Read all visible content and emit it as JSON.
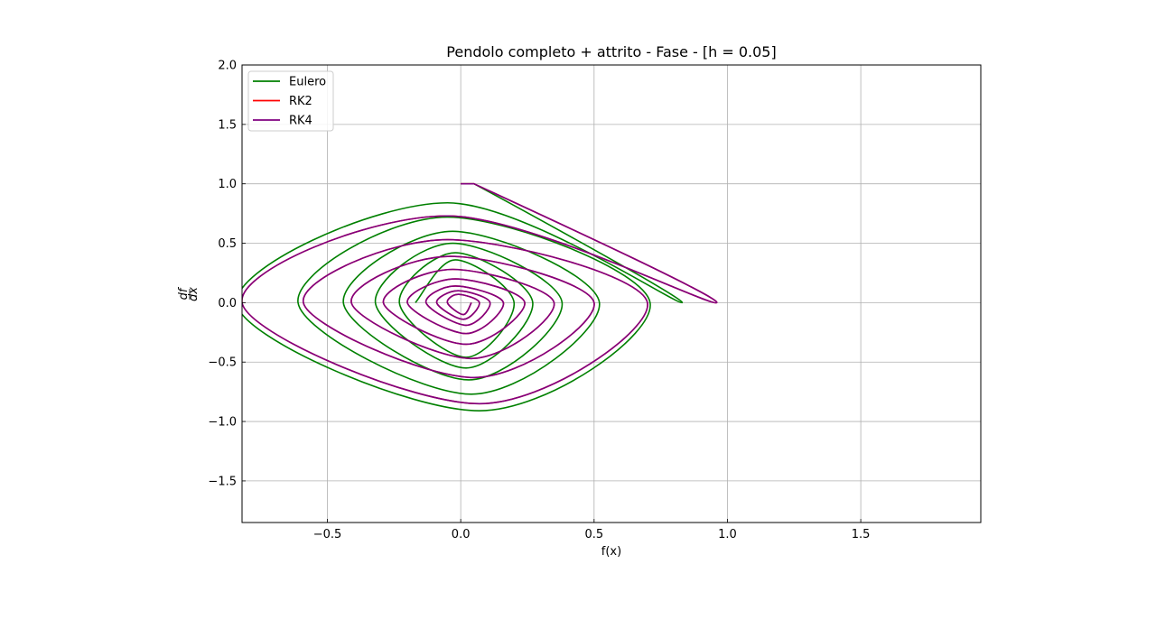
{
  "chart_data": {
    "type": "line",
    "title": "Pendolo completo + attrito - Fase - [h = 0.05]",
    "xlabel": "f(x)",
    "ylabel_num": "df",
    "ylabel_den": "dx",
    "xlim": [
      -0.82,
      1.95
    ],
    "ylim": [
      -1.85,
      2.0
    ],
    "x_ticks": [
      -0.5,
      0.0,
      0.5,
      1.0,
      1.5
    ],
    "x_tick_labels": [
      "−0.5",
      "0.0",
      "0.5",
      "1.0",
      "1.5"
    ],
    "y_ticks": [
      -1.5,
      -1.0,
      -0.5,
      0.0,
      0.5,
      1.0,
      1.5,
      2.0
    ],
    "y_tick_labels": [
      "−1.5",
      "−1.0",
      "−0.5",
      "0.0",
      "0.5",
      "1.0",
      "1.5",
      "2.0"
    ],
    "grid": true,
    "legend_position": "top-left",
    "series": [
      {
        "name": "Eulero",
        "color": "#008000",
        "x": [
          0.0,
          0.05,
          0.83,
          -0.05,
          -0.84,
          0.07,
          0.71,
          -0.05,
          -0.61,
          0.04,
          0.52,
          -0.03,
          -0.44,
          0.03,
          0.38,
          -0.03,
          -0.32,
          0.02,
          0.27,
          -0.02,
          -0.23,
          0.02,
          0.2,
          -0.02,
          -0.17
        ],
        "y": [
          1.0,
          1.0,
          0.0,
          0.84,
          -0.01,
          -0.91,
          0.0,
          0.72,
          0.0,
          -0.77,
          0.0,
          0.6,
          0.0,
          -0.65,
          0.0,
          0.5,
          0.0,
          -0.55,
          0.0,
          0.42,
          0.0,
          -0.46,
          0.0,
          0.36,
          0.0
        ]
      },
      {
        "name": "RK2",
        "color": "#ff0000",
        "x": [
          0.0,
          0.05,
          0.96,
          -0.05,
          -0.82,
          0.07,
          0.7,
          -0.05,
          -0.59,
          0.05,
          0.5,
          -0.04,
          -0.41,
          0.04,
          0.35,
          -0.03,
          -0.29,
          0.02,
          0.24,
          -0.02,
          -0.2,
          0.02,
          0.16,
          -0.02,
          -0.13,
          0.02,
          0.11,
          -0.01,
          -0.09,
          0.01,
          0.07,
          -0.01,
          -0.05,
          0.01,
          0.04
        ],
        "y": [
          1.0,
          1.0,
          0.0,
          0.73,
          0.0,
          -0.85,
          0.0,
          0.53,
          0.0,
          -0.63,
          0.0,
          0.39,
          0.0,
          -0.47,
          0.0,
          0.28,
          0.0,
          -0.35,
          0.0,
          0.2,
          0.0,
          -0.26,
          0.0,
          0.14,
          0.0,
          -0.19,
          0.0,
          0.1,
          0.0,
          -0.14,
          0.0,
          0.07,
          0.0,
          -0.1,
          0.0
        ]
      },
      {
        "name": "RK4",
        "color": "#800080",
        "x": [
          0.0,
          0.05,
          0.96,
          -0.05,
          -0.82,
          0.07,
          0.7,
          -0.05,
          -0.59,
          0.05,
          0.5,
          -0.04,
          -0.41,
          0.04,
          0.35,
          -0.03,
          -0.29,
          0.02,
          0.24,
          -0.02,
          -0.2,
          0.02,
          0.16,
          -0.02,
          -0.13,
          0.02,
          0.11,
          -0.01,
          -0.09,
          0.01,
          0.07,
          -0.01,
          -0.05,
          0.01,
          0.04
        ],
        "y": [
          1.0,
          1.0,
          0.0,
          0.73,
          0.0,
          -0.85,
          0.0,
          0.53,
          0.0,
          -0.63,
          0.0,
          0.39,
          0.0,
          -0.47,
          0.0,
          0.28,
          0.0,
          -0.35,
          0.0,
          0.2,
          0.0,
          -0.26,
          0.0,
          0.14,
          0.0,
          -0.19,
          0.0,
          0.1,
          0.0,
          -0.14,
          0.0,
          0.07,
          0.0,
          -0.1,
          0.0
        ]
      }
    ]
  }
}
